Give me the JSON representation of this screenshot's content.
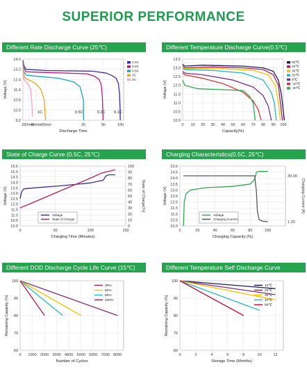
{
  "page": {
    "title": "SUPERIOR PERFORMANCE"
  },
  "chart_data": [
    {
      "type": "line",
      "title": "Different Rate Discharge Curve (25℃)",
      "xlabel": "Discharge Time",
      "ylabel": "Voltage (V)",
      "xlim": [
        0,
        620
      ],
      "ylim": [
        9.2,
        14.0
      ],
      "yticks": [
        9.2,
        10.0,
        10.8,
        11.6,
        12.4,
        13.2,
        14.0
      ],
      "ytick_labels": [
        "9.2",
        "10.0",
        "10.8",
        "11.6",
        "12.4",
        "13.2",
        "14.0"
      ],
      "xticks": [
        0,
        20,
        40,
        60,
        120,
        300,
        600
      ],
      "xtick_labels": [
        "0",
        "20min",
        "40min",
        "60min",
        "2h",
        "5h",
        "10h"
      ],
      "annotations": [
        {
          "text": "1C",
          "x": 48,
          "y": 9.75
        },
        {
          "text": "0.5C",
          "x": 113,
          "y": 9.75
        },
        {
          "text": "0.2C",
          "x": 280,
          "y": 9.75
        },
        {
          "text": "0.1C",
          "x": 555,
          "y": 9.75
        }
      ],
      "legend_position": "right",
      "series": [
        {
          "name": "0.1C",
          "color": "#3b2aa5",
          "points": [
            [
              0,
              13.9
            ],
            [
              3,
              13.5
            ],
            [
              10,
              13.2
            ],
            [
              60,
              13.1
            ],
            [
              200,
              13.05
            ],
            [
              350,
              12.9
            ],
            [
              450,
              12.7
            ],
            [
              520,
              12.5
            ],
            [
              560,
              12.1
            ],
            [
              580,
              11.3
            ],
            [
              590,
              10.2
            ],
            [
              595,
              9.2
            ]
          ]
        },
        {
          "name": "0.2C",
          "color": "#c0147a",
          "points": [
            [
              0,
              13.85
            ],
            [
              3,
              13.3
            ],
            [
              10,
              13.0
            ],
            [
              60,
              12.95
            ],
            [
              150,
              12.85
            ],
            [
              220,
              12.65
            ],
            [
              260,
              12.4
            ],
            [
              280,
              12.0
            ],
            [
              290,
              11.0
            ],
            [
              296,
              9.2
            ]
          ]
        },
        {
          "name": "0.5C",
          "color": "#16a5c0",
          "points": [
            [
              0,
              13.7
            ],
            [
              3,
              13.0
            ],
            [
              10,
              12.75
            ],
            [
              40,
              12.65
            ],
            [
              80,
              12.5
            ],
            [
              105,
              12.2
            ],
            [
              115,
              11.8
            ],
            [
              120,
              10.8
            ],
            [
              122,
              9.2
            ]
          ]
        },
        {
          "name": "1C",
          "color": "#f2a114",
          "points": [
            [
              0,
              13.5
            ],
            [
              3,
              12.7
            ],
            [
              10,
              12.45
            ],
            [
              25,
              12.3
            ],
            [
              40,
              12.05
            ],
            [
              50,
              11.6
            ],
            [
              56,
              10.8
            ],
            [
              59,
              9.2
            ]
          ]
        },
        {
          "name": "2C",
          "color": "#f1a3c3",
          "points": [
            [
              0,
              13.2
            ],
            [
              3,
              12.4
            ],
            [
              10,
              12.2
            ],
            [
              20,
              11.95
            ],
            [
              25,
              11.6
            ],
            [
              28,
              10.6
            ],
            [
              30,
              9.5
            ]
          ]
        }
      ]
    },
    {
      "type": "line",
      "title": "Different Temperature Discharge Curve(0.5℃)",
      "xlabel": "Capacity(%)",
      "ylabel": "Voltage (V)",
      "xlim": [
        0,
        100
      ],
      "ylim": [
        10.0,
        13.5
      ],
      "yticks": [
        10.0,
        10.5,
        11.0,
        11.5,
        12.0,
        12.5,
        13.0,
        13.5
      ],
      "ytick_labels": [
        "10.0",
        "10.5",
        "11.0",
        "11.5",
        "12.0",
        "12.5",
        "13.0",
        "13.5"
      ],
      "xticks": [
        0,
        10,
        20,
        30,
        40,
        50,
        60,
        70,
        80,
        90,
        100
      ],
      "xtick_labels": [
        "0",
        "10",
        "20",
        "30",
        "40",
        "50",
        "60",
        "70",
        "80",
        "90",
        "100"
      ],
      "legend_position": "right",
      "series": [
        {
          "name": "50℃",
          "color": "#1c1c5a",
          "points": [
            [
              0,
              13.2
            ],
            [
              2,
              13.1
            ],
            [
              20,
              13.15
            ],
            [
              60,
              13.1
            ],
            [
              80,
              13.0
            ],
            [
              90,
              12.8
            ],
            [
              95,
              12.3
            ],
            [
              98,
              11.5
            ],
            [
              101,
              10.0
            ]
          ]
        },
        {
          "name": "40℃",
          "color": "#b01a5a",
          "points": [
            [
              0,
              13.1
            ],
            [
              2,
              13.0
            ],
            [
              30,
              13.05
            ],
            [
              60,
              13.0
            ],
            [
              80,
              12.9
            ],
            [
              90,
              12.6
            ],
            [
              95,
              12.0
            ],
            [
              97,
              11.0
            ],
            [
              99,
              10.0
            ]
          ]
        },
        {
          "name": "30℃",
          "color": "#f2c400",
          "points": [
            [
              0,
              13.0
            ],
            [
              2,
              12.95
            ],
            [
              40,
              12.95
            ],
            [
              70,
              12.85
            ],
            [
              85,
              12.6
            ],
            [
              92,
              12.0
            ],
            [
              95,
              11.0
            ],
            [
              97,
              10.0
            ]
          ]
        },
        {
          "name": "20℃",
          "color": "#27b6c9",
          "points": [
            [
              0,
              12.95
            ],
            [
              2,
              12.9
            ],
            [
              30,
              12.85
            ],
            [
              60,
              12.7
            ],
            [
              80,
              12.3
            ],
            [
              88,
              11.6
            ],
            [
              91,
              11.0
            ],
            [
              93,
              10.0
            ]
          ]
        },
        {
          "name": "0℃",
          "color": "#7a2d8b",
          "points": [
            [
              0,
              12.8
            ],
            [
              2,
              12.7
            ],
            [
              20,
              12.6
            ],
            [
              50,
              12.3
            ],
            [
              70,
              11.9
            ],
            [
              80,
              11.4
            ],
            [
              85,
              10.8
            ],
            [
              88,
              10.0
            ]
          ]
        },
        {
          "name": "-10℃",
          "color": "#e03030",
          "points": [
            [
              0,
              12.7
            ],
            [
              2,
              12.6
            ],
            [
              20,
              12.4
            ],
            [
              40,
              12.1
            ],
            [
              60,
              11.6
            ],
            [
              70,
              11.1
            ],
            [
              75,
              10.6
            ],
            [
              78,
              10.0
            ]
          ]
        },
        {
          "name": "-20℃",
          "color": "#2ca84e",
          "points": [
            [
              0,
              12.3
            ],
            [
              2,
              12.0
            ],
            [
              15,
              11.8
            ],
            [
              40,
              11.75
            ],
            [
              60,
              11.7
            ],
            [
              66,
              11.4
            ],
            [
              70,
              11.0
            ],
            [
              72,
              10.0
            ]
          ]
        }
      ]
    },
    {
      "type": "line",
      "title": "State of Charge Curve (0.5C, 25℃)",
      "xlabel": "Charging Time (Minutes)",
      "ylabel": "Voltage (V)",
      "y2label": "State of Charge(%)",
      "xlim": [
        0,
        150
      ],
      "ylim": [
        10.0,
        15.5
      ],
      "y2lim": [
        0,
        100
      ],
      "yticks": [
        10.0,
        10.5,
        11.0,
        11.5,
        12.0,
        12.5,
        13.0,
        13.5,
        14.0,
        14.5,
        15.0,
        15.5
      ],
      "ytick_labels": [
        "10.0",
        "10.5",
        "11.0",
        "11.5",
        "12.0",
        "12.5",
        "13.0",
        "13.5",
        "14.0",
        "14.5",
        "15.0",
        "15.5"
      ],
      "y2ticks": [
        0,
        10,
        20,
        30,
        40,
        50,
        60,
        70,
        80,
        90,
        100
      ],
      "y2tick_labels": [
        "0",
        "10",
        "20",
        "30",
        "40",
        "50",
        "60",
        "70",
        "80",
        "90",
        "100"
      ],
      "xticks": [
        0,
        50,
        100,
        150
      ],
      "xtick_labels": [
        "0",
        "50",
        "100",
        "150"
      ],
      "legend_position": "bottom-left",
      "series": [
        {
          "name": "Voltage",
          "color": "#3b2f8f",
          "axis": "left",
          "points": [
            [
              0,
              12.5
            ],
            [
              2,
              13.1
            ],
            [
              5,
              13.4
            ],
            [
              20,
              13.5
            ],
            [
              60,
              13.7
            ],
            [
              100,
              13.95
            ],
            [
              110,
              14.1
            ],
            [
              118,
              14.2
            ],
            [
              122,
              14.6
            ],
            [
              126,
              14.7
            ],
            [
              135,
              14.7
            ]
          ]
        },
        {
          "name": "State of Charge",
          "color": "#c2185b",
          "axis": "right",
          "points": [
            [
              0,
              30
            ],
            [
              20,
              40
            ],
            [
              40,
              50
            ],
            [
              60,
              60
            ],
            [
              80,
              70
            ],
            [
              100,
              80
            ],
            [
              115,
              88
            ],
            [
              125,
              91
            ],
            [
              135,
              94
            ]
          ]
        }
      ]
    },
    {
      "type": "line",
      "title": "Charging Characteristics(0.5C, 25℃)",
      "xlabel": "Charging Capacity (%)",
      "ylabel": "Voltage (V)",
      "y2label": "Charging Current (A)",
      "xlim": [
        0,
        120
      ],
      "ylim": [
        10.0,
        15.0
      ],
      "yticks": [
        10.0,
        10.5,
        11.0,
        11.5,
        12.0,
        12.5,
        13.0,
        13.5,
        14.0,
        14.5,
        15.0
      ],
      "ytick_labels": [
        "10.0",
        "10.5",
        "11.0",
        "11.5",
        "12.0",
        "12.5",
        "13.0",
        "13.5",
        "14.0",
        "14.5",
        "15.0"
      ],
      "y2ticks": [
        1.2,
        30.0
      ],
      "y2tick_labels": [
        "1.20",
        "30.00"
      ],
      "xticks": [
        0,
        20,
        40,
        60,
        80,
        100
      ],
      "xtick_labels": [
        "0",
        "20",
        "40",
        "60",
        "80",
        "100"
      ],
      "legend_position": "bottom-center",
      "series": [
        {
          "name": "Voltage",
          "color": "#2ca84e",
          "axis": "left",
          "points": [
            [
              4,
              10.0
            ],
            [
              5,
              12.0
            ],
            [
              7,
              12.7
            ],
            [
              12,
              13.0
            ],
            [
              30,
              13.2
            ],
            [
              60,
              13.3
            ],
            [
              80,
              13.5
            ],
            [
              85,
              13.9
            ],
            [
              87,
              14.5
            ],
            [
              90,
              14.55
            ],
            [
              100,
              14.55
            ]
          ]
        },
        {
          "name": "Charging Current",
          "color": "#555555",
          "axis": "right",
          "points": [
            [
              4,
              30
            ],
            [
              85,
              30
            ],
            [
              87,
              20
            ],
            [
              88,
              8
            ],
            [
              90,
              2.5
            ],
            [
              94,
              1.5
            ],
            [
              100,
              1.2
            ]
          ]
        }
      ]
    },
    {
      "type": "line",
      "title": "Different DOD Discharge Cycle Life Curve (15℃)",
      "xlabel": "Number of Cycles",
      "ylabel": "Remaining Capacity (%)",
      "xlim": [
        0,
        8500
      ],
      "ylim": [
        60,
        100
      ],
      "yticks": [
        60,
        70,
        80,
        90,
        100
      ],
      "ytick_labels": [
        "60",
        "70",
        "80",
        "90",
        "100"
      ],
      "xticks": [
        0,
        1000,
        2000,
        3000,
        4000,
        5000,
        6000,
        7000,
        8000
      ],
      "xtick_labels": [
        "0",
        "1000",
        "2000",
        "3000",
        "4000",
        "5000",
        "6000",
        "7000",
        "8000"
      ],
      "legend_position": "top-right",
      "series": [
        {
          "name": "30%",
          "color": "#8a2a6e",
          "points": [
            [
              0,
              100
            ],
            [
              8000,
              80
            ]
          ]
        },
        {
          "name": "50%",
          "color": "#f2c400",
          "points": [
            [
              0,
              100
            ],
            [
              5000,
              80
            ]
          ]
        },
        {
          "name": "80%",
          "color": "#27b6c9",
          "points": [
            [
              0,
              100
            ],
            [
              3500,
              80
            ]
          ]
        },
        {
          "name": "100%",
          "color": "#c0143c",
          "points": [
            [
              0,
              100
            ],
            [
              2000,
              80
            ]
          ]
        }
      ]
    },
    {
      "type": "line",
      "title": "Different Temperature Self Discharge Curve",
      "xlabel": "Storage Time (Months)",
      "ylabel": "Remaining Capacity (%)",
      "xlim": [
        0,
        13
      ],
      "ylim": [
        60,
        100
      ],
      "yticks": [
        60,
        70,
        80,
        90,
        100
      ],
      "ytick_labels": [
        "60",
        "70",
        "80",
        "90",
        "100"
      ],
      "xticks": [
        0,
        2,
        4,
        6,
        8,
        10,
        12
      ],
      "xtick_labels": [
        "0",
        "2",
        "4",
        "6",
        "8",
        "10",
        "12"
      ],
      "legend_position": "top-right",
      "series": [
        {
          "name": "10℃",
          "color": "#1c1c5a",
          "points": [
            [
              0,
              100
            ],
            [
              12,
              95.5
            ]
          ]
        },
        {
          "name": "25℃",
          "color": "#8a2a6e",
          "points": [
            [
              0,
              100
            ],
            [
              12,
              92
            ]
          ]
        },
        {
          "name": "30℃",
          "color": "#f2c400",
          "points": [
            [
              0,
              100
            ],
            [
              12,
              89
            ]
          ]
        },
        {
          "name": "40℃",
          "color": "#27b6c9",
          "points": [
            [
              0,
              100
            ],
            [
              10,
              83
            ]
          ]
        },
        {
          "name": "50℃",
          "color": "#c0143c",
          "points": [
            [
              0,
              100
            ],
            [
              8,
              80
            ]
          ]
        }
      ]
    }
  ]
}
